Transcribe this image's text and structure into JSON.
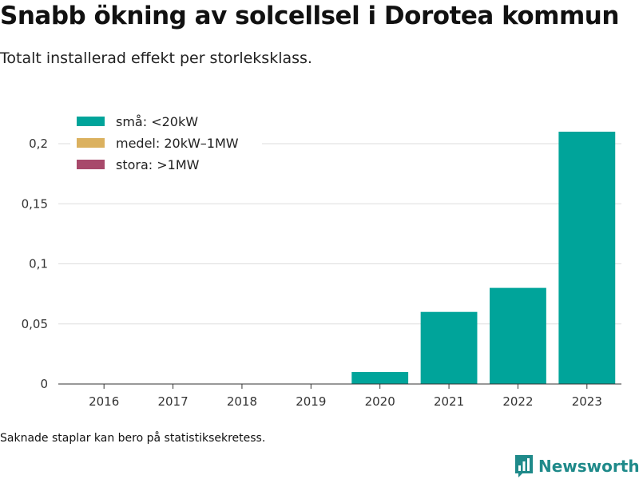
{
  "header": {
    "title": "Snabb ökning av solcellsel i Dorotea kommun",
    "subtitle": "Totalt installerad effekt per storleksklass."
  },
  "footnote": "Saknade staplar kan bero på statistiksekretess.",
  "brand": {
    "name": "Newsworthy",
    "icon": "newsworthy-logo-icon",
    "color": "#1f8a8a"
  },
  "chart_data": {
    "type": "bar",
    "stacked": true,
    "categories": [
      "2016",
      "2017",
      "2018",
      "2019",
      "2020",
      "2021",
      "2022",
      "2023"
    ],
    "series": [
      {
        "name": "små: <20kW",
        "color": "#00a49a",
        "values": [
          0,
          0,
          0,
          0,
          0.01,
          0.06,
          0.08,
          0.21
        ]
      },
      {
        "name": "medel: 20kW–1MW",
        "color": "#dbb15f",
        "values": [
          0,
          0,
          0,
          0,
          0,
          0,
          0,
          0
        ]
      },
      {
        "name": "stora: >1MW",
        "color": "#a8496b",
        "values": [
          0,
          0,
          0,
          0,
          0,
          0,
          0,
          0
        ]
      }
    ],
    "ylim": [
      0,
      0.2
    ],
    "yticks": [
      0,
      0.05,
      0.1,
      0.15,
      0.2
    ],
    "ytick_labels": [
      "0",
      "0,05",
      "0,1",
      "0,15",
      "0,2"
    ],
    "grid": true,
    "legend_position": "top-left"
  }
}
